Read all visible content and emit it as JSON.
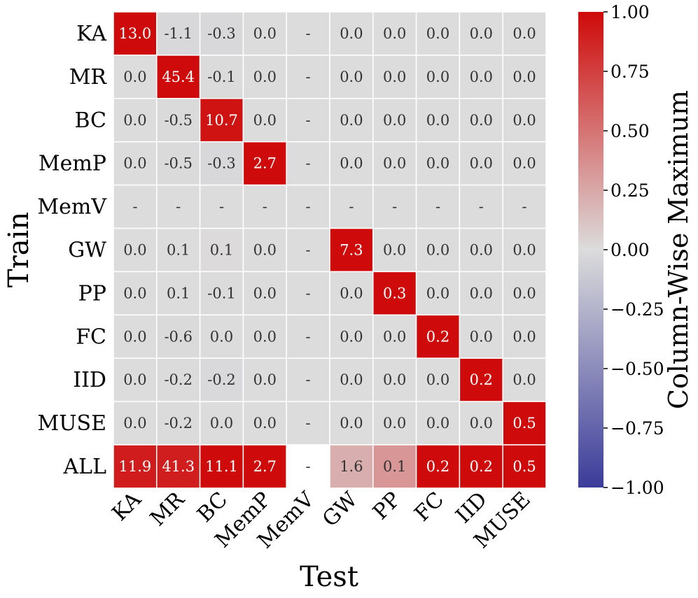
{
  "chart_data": {
    "type": "heatmap",
    "title": "",
    "xlabel": "Test",
    "ylabel": "Train",
    "x_categories": [
      "KA",
      "MR",
      "BC",
      "MemP",
      "MemV",
      "GW",
      "PP",
      "FC",
      "IID",
      "MUSE"
    ],
    "y_categories": [
      "KA",
      "MR",
      "BC",
      "MemP",
      "MemV",
      "GW",
      "PP",
      "FC",
      "IID",
      "MUSE",
      "ALL"
    ],
    "cells": [
      [
        "13.0",
        "-1.1",
        "-0.3",
        "0.0",
        "-",
        "0.0",
        "0.0",
        "0.0",
        "0.0",
        "0.0"
      ],
      [
        "0.0",
        "45.4",
        "-0.1",
        "0.0",
        "-",
        "0.0",
        "0.0",
        "0.0",
        "0.0",
        "0.0"
      ],
      [
        "0.0",
        "-0.5",
        "10.7",
        "0.0",
        "-",
        "0.0",
        "0.0",
        "0.0",
        "0.0",
        "0.0"
      ],
      [
        "0.0",
        "-0.5",
        "-0.3",
        "2.7",
        "-",
        "0.0",
        "0.0",
        "0.0",
        "0.0",
        "0.0"
      ],
      [
        "-",
        "-",
        "-",
        "-",
        "-",
        "-",
        "-",
        "-",
        "-",
        "-"
      ],
      [
        "0.0",
        "0.1",
        "0.1",
        "0.0",
        "-",
        "7.3",
        "0.0",
        "0.0",
        "0.0",
        "0.0"
      ],
      [
        "0.0",
        "0.1",
        "-0.1",
        "0.0",
        "-",
        "0.0",
        "0.3",
        "0.0",
        "0.0",
        "0.0"
      ],
      [
        "0.0",
        "-0.6",
        "0.0",
        "0.0",
        "-",
        "0.0",
        "0.0",
        "0.2",
        "0.0",
        "0.0"
      ],
      [
        "0.0",
        "-0.2",
        "-0.2",
        "0.0",
        "-",
        "0.0",
        "0.0",
        "0.0",
        "0.2",
        "0.0"
      ],
      [
        "0.0",
        "-0.2",
        "0.0",
        "0.0",
        "-",
        "0.0",
        "0.0",
        "0.0",
        "0.0",
        "0.5"
      ],
      [
        "11.9",
        "41.3",
        "11.1",
        "2.7",
        "-",
        "1.6",
        "0.1",
        "0.2",
        "0.2",
        "0.5"
      ]
    ],
    "colorbar": {
      "label": "Column-Wise Maximum",
      "range": [
        -1.0,
        1.0
      ],
      "ticks": [
        "1.00",
        "0.75",
        "0.50",
        "0.25",
        "0.00",
        "−0.25",
        "−0.50",
        "−0.75",
        "−1.00"
      ],
      "tick_values": [
        1.0,
        0.75,
        0.5,
        0.25,
        0.0,
        -0.25,
        -0.5,
        -0.75,
        -1.0
      ],
      "colors": {
        "low": "#3b3b9a",
        "mid": "#dcdcdc",
        "high": "#cf0a0a"
      }
    },
    "missing_color": "#ffffff",
    "grid_color": "#ffffff"
  }
}
